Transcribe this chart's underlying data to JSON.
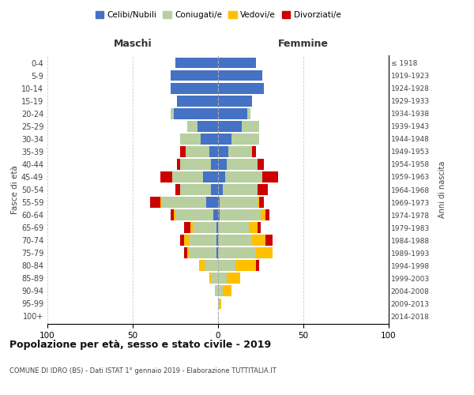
{
  "age_groups": [
    "0-4",
    "5-9",
    "10-14",
    "15-19",
    "20-24",
    "25-29",
    "30-34",
    "35-39",
    "40-44",
    "45-49",
    "50-54",
    "55-59",
    "60-64",
    "65-69",
    "70-74",
    "75-79",
    "80-84",
    "85-89",
    "90-94",
    "95-99",
    "100+"
  ],
  "birth_years": [
    "2014-2018",
    "2009-2013",
    "2004-2008",
    "1999-2003",
    "1994-1998",
    "1989-1993",
    "1984-1988",
    "1979-1983",
    "1974-1978",
    "1969-1973",
    "1964-1968",
    "1959-1963",
    "1954-1958",
    "1949-1953",
    "1944-1948",
    "1939-1943",
    "1934-1938",
    "1929-1933",
    "1924-1928",
    "1919-1923",
    "≤ 1918"
  ],
  "male": {
    "celibi": [
      25,
      28,
      28,
      24,
      26,
      12,
      10,
      5,
      4,
      9,
      4,
      7,
      3,
      1,
      1,
      1,
      0,
      0,
      0,
      0,
      0
    ],
    "coniugati": [
      0,
      0,
      0,
      0,
      2,
      6,
      12,
      14,
      18,
      18,
      18,
      26,
      22,
      14,
      16,
      16,
      8,
      4,
      2,
      0,
      0
    ],
    "vedovi": [
      0,
      0,
      0,
      0,
      0,
      0,
      0,
      0,
      0,
      0,
      0,
      1,
      1,
      1,
      3,
      1,
      3,
      1,
      0,
      0,
      0
    ],
    "divorziati": [
      0,
      0,
      0,
      0,
      0,
      0,
      0,
      3,
      2,
      7,
      3,
      6,
      2,
      4,
      2,
      2,
      0,
      0,
      0,
      0,
      0
    ]
  },
  "female": {
    "nubili": [
      22,
      26,
      27,
      20,
      17,
      14,
      8,
      6,
      5,
      4,
      3,
      1,
      1,
      0,
      0,
      0,
      0,
      0,
      0,
      0,
      0
    ],
    "coniugate": [
      0,
      0,
      0,
      0,
      2,
      10,
      16,
      14,
      18,
      22,
      20,
      22,
      24,
      18,
      20,
      22,
      10,
      5,
      3,
      1,
      0
    ],
    "vedove": [
      0,
      0,
      0,
      0,
      0,
      0,
      0,
      0,
      0,
      0,
      0,
      1,
      3,
      5,
      8,
      10,
      12,
      8,
      5,
      1,
      0
    ],
    "divorziate": [
      0,
      0,
      0,
      0,
      0,
      0,
      0,
      2,
      4,
      9,
      6,
      3,
      2,
      2,
      4,
      0,
      2,
      0,
      0,
      0,
      0
    ]
  },
  "colors": {
    "celibi": "#4472c4",
    "coniugati": "#b8cfa0",
    "vedovi": "#ffc000",
    "divorziati": "#cc0000"
  },
  "title": "Popolazione per età, sesso e stato civile - 2019",
  "subtitle": "COMUNE DI IDRO (BS) - Dati ISTAT 1° gennaio 2019 - Elaborazione TUTTITALIA.IT",
  "xlabel_left": "Maschi",
  "xlabel_right": "Femmine",
  "ylabel_left": "Fasce di età",
  "ylabel_right": "Anni di nascita",
  "xlim": 100,
  "legend_labels": [
    "Celibi/Nubili",
    "Coniugati/e",
    "Vedovi/e",
    "Divorziati/e"
  ],
  "bg_color": "#ffffff",
  "grid_color": "#cccccc"
}
